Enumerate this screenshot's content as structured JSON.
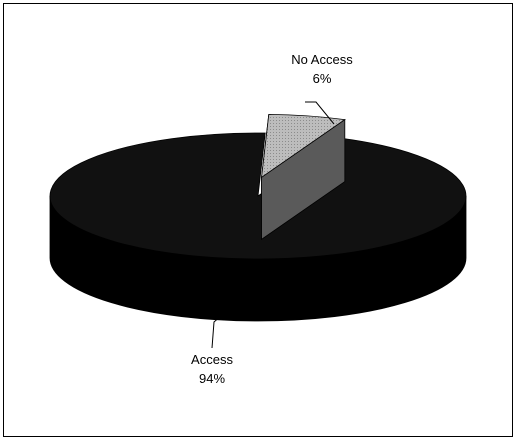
{
  "chart_data": {
    "type": "pie",
    "style": "3d-exploded",
    "title": "",
    "legend": "none",
    "slices": [
      {
        "label": "Access",
        "percent_label": "94%",
        "value": 94,
        "color": "#111111",
        "shade": "#000000",
        "exploded": false
      },
      {
        "label": "No Access",
        "percent_label": "6%",
        "value": 6,
        "color": "#bdbdbd",
        "shade": "#7a7a7a",
        "exploded": true
      }
    ]
  },
  "colors": {
    "background": "#ffffff",
    "frame_border": "#000000",
    "leader_line": "#000000"
  }
}
